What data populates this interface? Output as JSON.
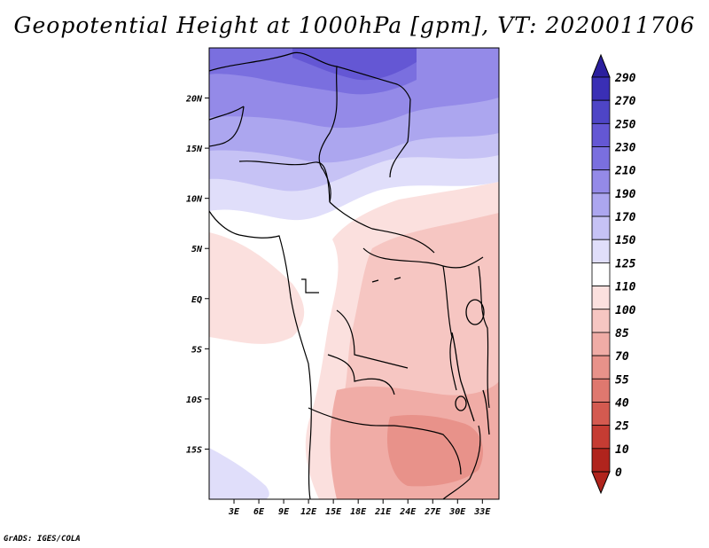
{
  "title": "Geopotential Height at 1000hPa [gpm], VT: 2020011706",
  "credit": "GrADS: IGES/COLA",
  "map": {
    "lon_range": [
      0,
      35
    ],
    "lat_range": [
      -20,
      25
    ],
    "lon_ticks": [
      "3E",
      "6E",
      "9E",
      "12E",
      "15E",
      "18E",
      "21E",
      "24E",
      "27E",
      "30E",
      "33E"
    ],
    "lat_ticks": [
      "20N",
      "15N",
      "10N",
      "5N",
      "EQ",
      "5S",
      "10S",
      "15S"
    ]
  },
  "colorbar": {
    "labels": [
      "290",
      "270",
      "250",
      "230",
      "210",
      "190",
      "170",
      "150",
      "125",
      "110",
      "100",
      "85",
      "70",
      "55",
      "40",
      "25",
      "10",
      "0"
    ],
    "colors": [
      "#2b1f9e",
      "#3a2fb5",
      "#4e45c6",
      "#6457d4",
      "#7a6fdf",
      "#948ae8",
      "#aca6ef",
      "#c6c2f5",
      "#e0defa",
      "#ffffff",
      "#fbe0de",
      "#f6c6c2",
      "#f0aca6",
      "#e8928a",
      "#df786f",
      "#d45a50",
      "#c53c33",
      "#b0241d"
    ]
  }
}
